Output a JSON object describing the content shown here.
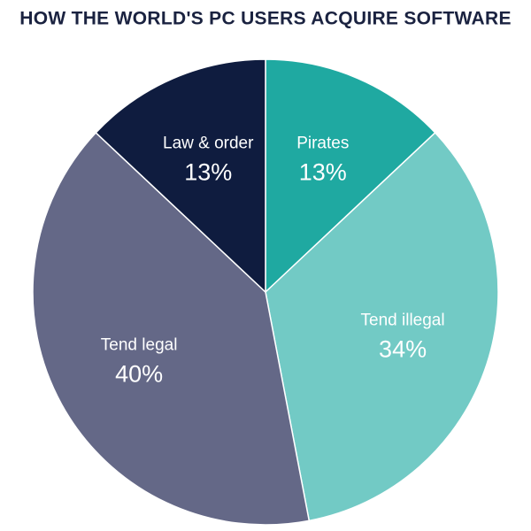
{
  "chart_data": {
    "type": "pie",
    "title": "HOW THE WORLD'S PC USERS ACQUIRE SOFTWARE",
    "categories": [
      "Pirates",
      "Tend illegal",
      "Tend legal",
      "Law & order"
    ],
    "values": [
      13,
      34,
      40,
      13
    ],
    "value_labels": [
      "13%",
      "34%",
      "40%",
      "13%"
    ],
    "colors": [
      "#1fa9a1",
      "#72cac5",
      "#646887",
      "#0f1c3f"
    ]
  }
}
